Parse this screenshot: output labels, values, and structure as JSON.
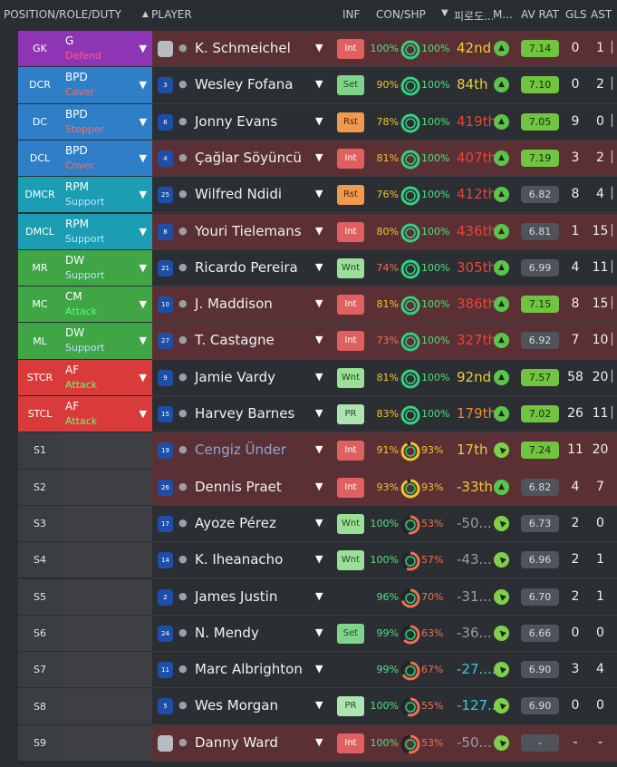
{
  "header": {
    "position_role_duty": "POSITION/ROLE/DUTY",
    "player": "PLAYER",
    "inf": "INF",
    "con_shp": "CON/SHP",
    "form": "피로도...",
    "m": "M...",
    "av_rat": "AV RAT",
    "gls": "GLS",
    "ast": "AST"
  },
  "colors": {
    "gk": "#8e35b5",
    "def": "#2f7fc8",
    "dm": "#1b9eb3",
    "mid": "#3fa545",
    "att": "#d93a3a",
    "sub": "#3a3d41"
  },
  "players": [
    {
      "pos": "GK",
      "role": "G",
      "duty": "Defend",
      "group": "gk",
      "kit": "",
      "gk_kit": true,
      "name": "K. Schmeichel",
      "inf": "Int",
      "con": "100%",
      "con_v": 100,
      "shp": "100%",
      "shp_v": 100,
      "form": "42nd",
      "form_col": "#f0cc3a",
      "arrow": "up",
      "rat": "7.14",
      "rat_hi": true,
      "gls": "0",
      "ast": "1",
      "red": true
    },
    {
      "pos": "DCR",
      "role": "BPD",
      "duty": "Cover",
      "group": "def",
      "kit": "3",
      "name": "Wesley Fofana",
      "inf": "Set",
      "con": "90%",
      "con_v": 90,
      "shp": "100%",
      "shp_v": 100,
      "form": "84th",
      "form_col": "#f0cc3a",
      "arrow": "up",
      "rat": "7.10",
      "rat_hi": true,
      "gls": "0",
      "ast": "2",
      "red": false
    },
    {
      "pos": "DC",
      "role": "BPD",
      "duty": "Stopper",
      "group": "def",
      "kit": "6",
      "name": "Jonny Evans",
      "inf": "Rst",
      "con": "78%",
      "con_v": 78,
      "shp": "100%",
      "shp_v": 100,
      "form": "419th",
      "form_col": "#e8443a",
      "arrow": "up",
      "rat": "7.05",
      "rat_hi": true,
      "gls": "9",
      "ast": "0",
      "red": false
    },
    {
      "pos": "DCL",
      "role": "BPD",
      "duty": "Cover",
      "group": "def",
      "kit": "4",
      "name": "Çağlar Söyüncü",
      "inf": "Int",
      "con": "81%",
      "con_v": 81,
      "shp": "100%",
      "shp_v": 100,
      "form": "407th",
      "form_col": "#e8443a",
      "arrow": "up",
      "rat": "7.19",
      "rat_hi": true,
      "gls": "3",
      "ast": "2",
      "red": true
    },
    {
      "pos": "DMCR",
      "role": "RPM",
      "duty": "Support",
      "group": "dm",
      "kit": "25",
      "name": "Wilfred Ndidi",
      "inf": "Rst",
      "con": "76%",
      "con_v": 76,
      "shp": "100%",
      "shp_v": 100,
      "form": "412th",
      "form_col": "#e8443a",
      "arrow": "up",
      "rat": "6.82",
      "rat_hi": false,
      "gls": "8",
      "ast": "4",
      "red": false
    },
    {
      "pos": "DMCL",
      "role": "RPM",
      "duty": "Support",
      "group": "dm",
      "kit": "8",
      "name": "Youri Tielemans",
      "inf": "Int",
      "con": "80%",
      "con_v": 80,
      "shp": "100%",
      "shp_v": 100,
      "form": "436th",
      "form_col": "#e8443a",
      "arrow": "up",
      "rat": "6.81",
      "rat_hi": false,
      "gls": "1",
      "ast": "15",
      "red": true
    },
    {
      "pos": "MR",
      "role": "DW",
      "duty": "Support",
      "group": "mid",
      "kit": "21",
      "name": "Ricardo Pereira",
      "inf": "Wnt",
      "con": "74%",
      "con_v": 74,
      "shp": "100%",
      "shp_v": 100,
      "form": "305th",
      "form_col": "#e8443a",
      "arrow": "up",
      "rat": "6.99",
      "rat_hi": false,
      "gls": "4",
      "ast": "11",
      "red": false
    },
    {
      "pos": "MC",
      "role": "CM",
      "duty": "Attack",
      "group": "mid",
      "kit": "10",
      "name": "J. Maddison",
      "inf": "Int",
      "con": "81%",
      "con_v": 81,
      "shp": "100%",
      "shp_v": 100,
      "form": "386th",
      "form_col": "#e8443a",
      "arrow": "up",
      "rat": "7.15",
      "rat_hi": true,
      "gls": "8",
      "ast": "15",
      "red": true
    },
    {
      "pos": "ML",
      "role": "DW",
      "duty": "Support",
      "group": "mid",
      "kit": "27",
      "name": "T. Castagne",
      "inf": "Int",
      "con": "73%",
      "con_v": 73,
      "shp": "100%",
      "shp_v": 100,
      "form": "327th",
      "form_col": "#e8443a",
      "arrow": "up",
      "rat": "6.92",
      "rat_hi": false,
      "gls": "7",
      "ast": "10",
      "red": true
    },
    {
      "pos": "STCR",
      "role": "AF",
      "duty": "Attack",
      "group": "att",
      "kit": "9",
      "name": "Jamie Vardy",
      "inf": "Wnt",
      "con": "81%",
      "con_v": 81,
      "shp": "100%",
      "shp_v": 100,
      "form": "92nd",
      "form_col": "#f0cc3a",
      "arrow": "up",
      "rat": "7.57",
      "rat_hi": true,
      "gls": "58",
      "ast": "20",
      "red": false
    },
    {
      "pos": "STCL",
      "role": "AF",
      "duty": "Attack",
      "group": "att",
      "kit": "15",
      "name": "Harvey Barnes",
      "inf": "PR",
      "con": "83%",
      "con_v": 83,
      "shp": "100%",
      "shp_v": 100,
      "form": "179th",
      "form_col": "#f08a2a",
      "arrow": "up",
      "rat": "7.02",
      "rat_hi": true,
      "gls": "26",
      "ast": "11",
      "red": false
    },
    {
      "pos": "S1",
      "role": "",
      "duty": "",
      "group": "sub",
      "kit": "19",
      "name": "Cengiz Ünder",
      "name_link": true,
      "inf": "Int",
      "con": "91%",
      "con_v": 91,
      "shp": "93%",
      "shp_v": 93,
      "form": "17th",
      "form_col": "#f0cc3a",
      "arrow": "right",
      "rat": "7.24",
      "rat_hi": true,
      "gls": "11",
      "ast": "20",
      "red": true
    },
    {
      "pos": "S2",
      "role": "",
      "duty": "",
      "group": "sub",
      "kit": "26",
      "name": "Dennis Praet",
      "inf": "Int",
      "con": "93%",
      "con_v": 93,
      "shp": "93%",
      "shp_v": 93,
      "form": "-33th",
      "form_col": "#f0cc3a",
      "arrow": "up",
      "rat": "6.82",
      "rat_hi": false,
      "gls": "4",
      "ast": "7",
      "red": true
    },
    {
      "pos": "S3",
      "role": "",
      "duty": "",
      "group": "sub",
      "kit": "17",
      "name": "Ayoze Pérez",
      "inf": "Wnt",
      "con": "100%",
      "con_v": 100,
      "shp": "53%",
      "shp_v": 53,
      "form": "-50...",
      "form_col": "#9a9ea3",
      "arrow": "right",
      "rat": "6.73",
      "rat_hi": false,
      "gls": "2",
      "ast": "0",
      "red": false
    },
    {
      "pos": "S4",
      "role": "",
      "duty": "",
      "group": "sub",
      "kit": "14",
      "name": "K. Iheanacho",
      "inf": "Wnt",
      "con": "100%",
      "con_v": 100,
      "shp": "57%",
      "shp_v": 57,
      "form": "-43...",
      "form_col": "#9a9ea3",
      "arrow": "right",
      "rat": "6.96",
      "rat_hi": false,
      "gls": "2",
      "ast": "1",
      "red": false
    },
    {
      "pos": "S5",
      "role": "",
      "duty": "",
      "group": "sub",
      "kit": "2",
      "name": "James Justin",
      "inf": "",
      "con": "96%",
      "con_v": 96,
      "shp": "70%",
      "shp_v": 70,
      "form": "-31...",
      "form_col": "#9a9ea3",
      "arrow": "right",
      "rat": "6.70",
      "rat_hi": false,
      "gls": "2",
      "ast": "1",
      "red": false
    },
    {
      "pos": "S6",
      "role": "",
      "duty": "",
      "group": "sub",
      "kit": "24",
      "name": "N. Mendy",
      "inf": "Set",
      "con": "99%",
      "con_v": 99,
      "shp": "63%",
      "shp_v": 63,
      "form": "-36...",
      "form_col": "#9a9ea3",
      "arrow": "right",
      "rat": "6.66",
      "rat_hi": false,
      "gls": "0",
      "ast": "0",
      "red": false
    },
    {
      "pos": "S7",
      "role": "",
      "duty": "",
      "group": "sub",
      "kit": "11",
      "name": "Marc Albrighton",
      "inf": "",
      "con": "99%",
      "con_v": 99,
      "shp": "67%",
      "shp_v": 67,
      "form": "-27....",
      "form_col": "#38c8e0",
      "arrow": "right",
      "rat": "6.90",
      "rat_hi": false,
      "gls": "3",
      "ast": "4",
      "red": false
    },
    {
      "pos": "S8",
      "role": "",
      "duty": "",
      "group": "sub",
      "kit": "5",
      "name": "Wes Morgan",
      "inf": "PR",
      "con": "100%",
      "con_v": 100,
      "shp": "55%",
      "shp_v": 55,
      "form": "-127...",
      "form_col": "#38c8e0",
      "arrow": "right",
      "rat": "6.90",
      "rat_hi": false,
      "gls": "0",
      "ast": "0",
      "red": false
    },
    {
      "pos": "S9",
      "role": "",
      "duty": "",
      "group": "sub",
      "kit": "",
      "gk_kit": true,
      "name": "Danny Ward",
      "inf": "Int",
      "con": "100%",
      "con_v": 100,
      "shp": "53%",
      "shp_v": 53,
      "form": "-50...",
      "form_col": "#9a9ea3",
      "arrow": "right",
      "rat": "-",
      "rat_hi": false,
      "gls": "-",
      "ast": "-",
      "red": true
    }
  ]
}
